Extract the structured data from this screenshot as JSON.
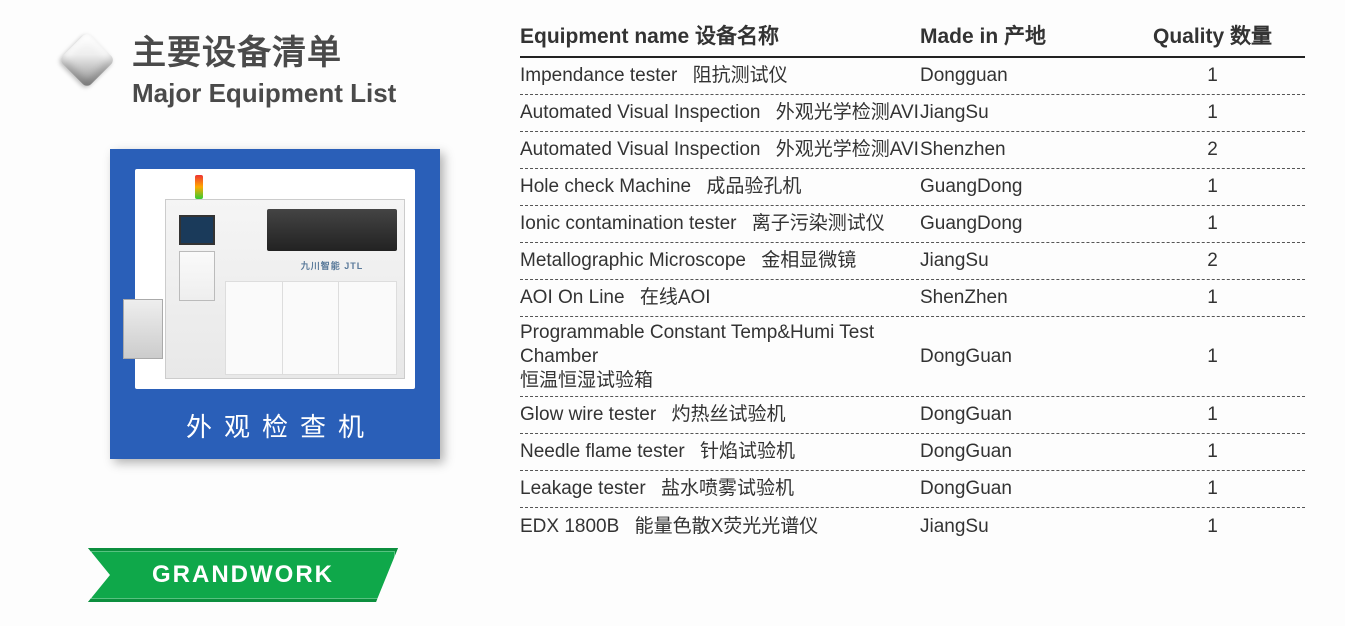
{
  "title": {
    "cn": "主要设备清单",
    "en": "Major Equipment List"
  },
  "photo": {
    "caption": "外观检查机",
    "machine_label": "九川智能 JTL"
  },
  "badge": "GRANDWORK",
  "table": {
    "headers": {
      "name": "Equipment name 设备名称",
      "made": "Made in 产地",
      "qty": "Quality 数量"
    },
    "rows": [
      {
        "name_en": "Impendance tester",
        "name_cn": "阻抗测试仪",
        "made": "Dongguan",
        "qty": "1"
      },
      {
        "name_en": "Automated Visual Inspection",
        "name_cn": "外观光学检测AVI",
        "made": "JiangSu",
        "qty": "1"
      },
      {
        "name_en": "Automated Visual Inspection",
        "name_cn": "外观光学检测AVI",
        "made": "Shenzhen",
        "qty": "2"
      },
      {
        "name_en": "Hole check Machine",
        "name_cn": "成品验孔机",
        "made": "GuangDong",
        "qty": "1"
      },
      {
        "name_en": "Ionic contamination tester",
        "name_cn": "离子污染测试仪",
        "made": "GuangDong",
        "qty": "1"
      },
      {
        "name_en": "Metallographic Microscope",
        "name_cn": "金相显微镜",
        "made": "JiangSu",
        "qty": "2"
      },
      {
        "name_en": "AOI On Line",
        "name_cn": "在线AOI",
        "made": "ShenZhen",
        "qty": "1"
      },
      {
        "name_en": "Programmable Constant Temp&Humi Test Chamber",
        "name_cn": "恒温恒湿试验箱",
        "made": "DongGuan",
        "qty": "1",
        "tall": true
      },
      {
        "name_en": "Glow wire tester",
        "name_cn": "灼热丝试验机",
        "made": "DongGuan",
        "qty": "1"
      },
      {
        "name_en": "Needle flame tester",
        "name_cn": "针焰试验机",
        "made": "DongGuan",
        "qty": "1"
      },
      {
        "name_en": "Leakage tester",
        "name_cn": "盐水喷雾试验机",
        "made": "DongGuan",
        "qty": "1"
      },
      {
        "name_en": "EDX 1800B",
        "name_cn": "能量色散X荧光光谱仪",
        "made": "JiangSu",
        "qty": "1"
      }
    ]
  },
  "colors": {
    "accent_green": "#0fa84a",
    "photo_bg": "#2a5fb8",
    "text": "#333333",
    "heading": "#4a4a4a"
  }
}
